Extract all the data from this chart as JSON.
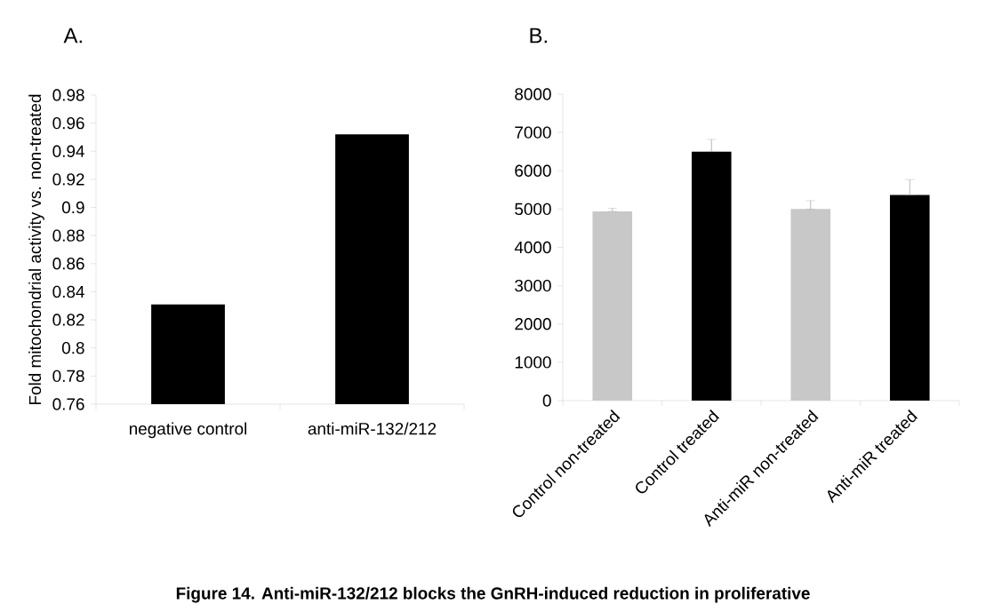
{
  "chart_data": [
    {
      "type": "bar",
      "title": "A.",
      "ylabel": "Fold mitochondrial activity vs. non-treated",
      "categories": [
        "negative control",
        "anti-miR-132/212"
      ],
      "values": [
        0.831,
        0.952
      ],
      "colors": [
        "#000000",
        "#000000"
      ],
      "ylim": [
        0.76,
        0.98
      ],
      "yticks": [
        0.76,
        0.78,
        0.8,
        0.82,
        0.84,
        0.86,
        0.88,
        0.9,
        0.92,
        0.94,
        0.96,
        0.98
      ],
      "grid": false,
      "annotations": [
        "Figure 14. Anti-miR-132/212 blocks the GnRH-induced reduction in proliferative"
      ]
    },
    {
      "type": "bar",
      "title": "B.",
      "categories": [
        "Control non-treated",
        "Control treated",
        "Anti-miR non-treated",
        "Anti-miR treated"
      ],
      "values": [
        4940,
        6500,
        5000,
        5370
      ],
      "errors": [
        [
          4940,
          5020
        ],
        [
          6500,
          6820
        ],
        [
          5000,
          5220
        ],
        [
          5370,
          5770
        ]
      ],
      "colors": [
        "#c8c8c8",
        "#000000",
        "#c8c8c8",
        "#000000"
      ],
      "ylim": [
        0,
        8000
      ],
      "yticks": [
        0,
        1000,
        2000,
        3000,
        4000,
        5000,
        6000,
        7000,
        8000
      ],
      "grid": false
    }
  ]
}
